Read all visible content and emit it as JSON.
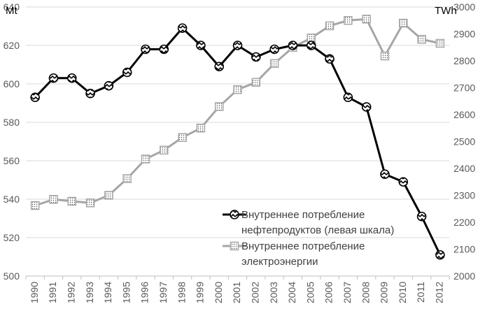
{
  "chart_data": {
    "type": "line",
    "x": [
      "1990",
      "1991",
      "1992",
      "1993",
      "1994",
      "1995",
      "1996",
      "1997",
      "1998",
      "1999",
      "2000",
      "2001",
      "2002",
      "2003",
      "2004",
      "2005",
      "2006",
      "2007",
      "2008",
      "2009",
      "2010",
      "2011",
      "2012"
    ],
    "left_axis": {
      "unit": "Mt",
      "ylim": [
        500,
        640
      ],
      "ticks": [
        "500",
        "520",
        "540",
        "560",
        "580",
        "600",
        "620",
        "640"
      ]
    },
    "right_axis": {
      "unit": "TWh",
      "ylim": [
        2000,
        3000
      ],
      "ticks": [
        "2000",
        "2100",
        "2200",
        "2300",
        "2400",
        "2500",
        "2600",
        "2700",
        "2800",
        "2900",
        "3000"
      ]
    },
    "series": [
      {
        "name": "Внутреннее потребление нефтепродуктов (левая шкала)",
        "axis": "left",
        "color": "#000000",
        "marker": "circle-patterned",
        "values": [
          593,
          603,
          603,
          595,
          599,
          606,
          618,
          618,
          629,
          620,
          609,
          620,
          614,
          618,
          620,
          620,
          613,
          593,
          588,
          553,
          549,
          531,
          511
        ]
      },
      {
        "name": "Внутреннее потребление электроэнергии",
        "axis": "right",
        "color": "#a6a6a6",
        "marker": "square-dotted",
        "values": [
          2262,
          2285,
          2278,
          2272,
          2300,
          2362,
          2435,
          2468,
          2515,
          2550,
          2630,
          2693,
          2720,
          2790,
          2850,
          2885,
          2930,
          2950,
          2955,
          2818,
          2940,
          2880,
          2865
        ]
      }
    ],
    "legend": {
      "position": "bottom-right",
      "entries": [
        [
          "Внутреннее потребление",
          "нефтепродуктов (левая шкала)"
        ],
        [
          "Внутреннее потребление",
          "электроэнергии"
        ]
      ]
    },
    "grid": true
  }
}
